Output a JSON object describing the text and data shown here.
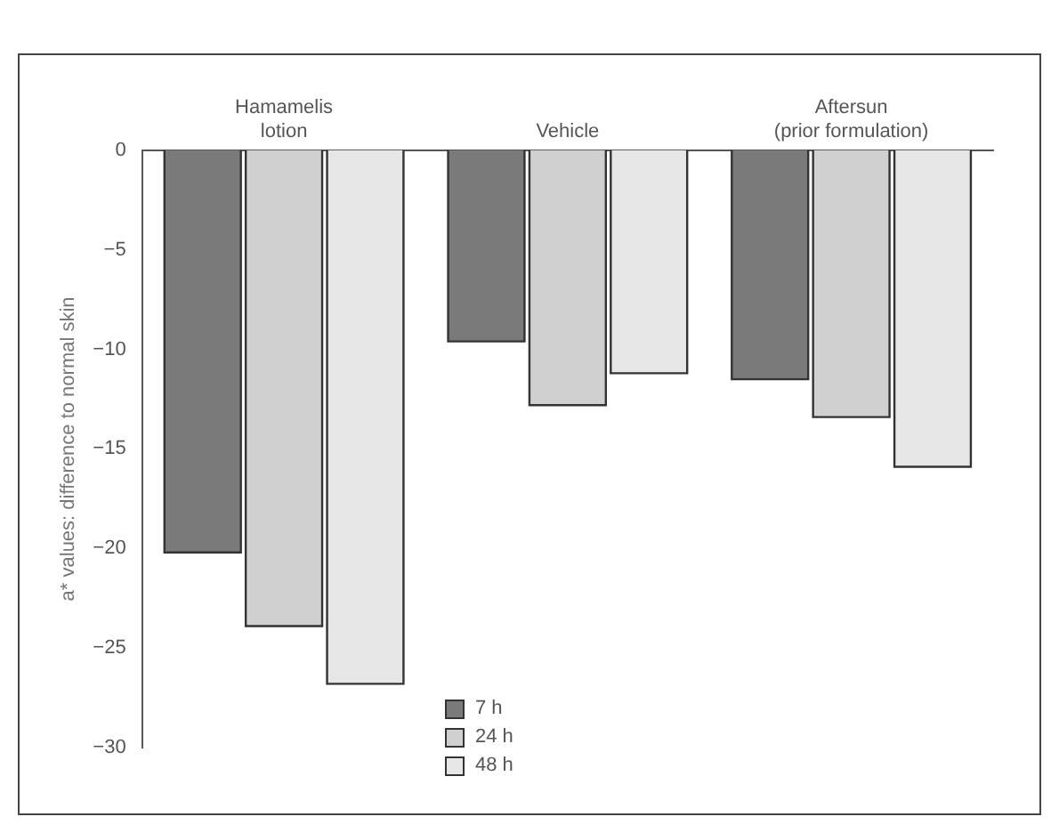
{
  "chart_data": {
    "type": "bar",
    "ylabel": "a* values: difference to normal skin",
    "categories": [
      "Hamamelis\nlotion",
      "Vehicle",
      "Aftersun\n(prior formulation)"
    ],
    "series": [
      {
        "name": "7 h",
        "color": "#7a7a7a",
        "values": [
          -20.2,
          -9.6,
          -11.5
        ]
      },
      {
        "name": "24 h",
        "color": "#d0d0d0",
        "values": [
          -23.9,
          -12.8,
          -13.4
        ]
      },
      {
        "name": "48 h",
        "color": "#e6e6e6",
        "values": [
          -26.8,
          -11.2,
          -15.9
        ]
      }
    ],
    "ylim": [
      -30,
      0
    ],
    "yticks": [
      {
        "value": -30,
        "label": "−30"
      },
      {
        "value": -25,
        "label": "−25"
      },
      {
        "value": -20,
        "label": "−20"
      },
      {
        "value": -15,
        "label": "−15"
      },
      {
        "value": -10,
        "label": "−10"
      },
      {
        "value": -5,
        "label": "−5"
      },
      0
    ],
    "grid": false,
    "legend": "bottom"
  }
}
